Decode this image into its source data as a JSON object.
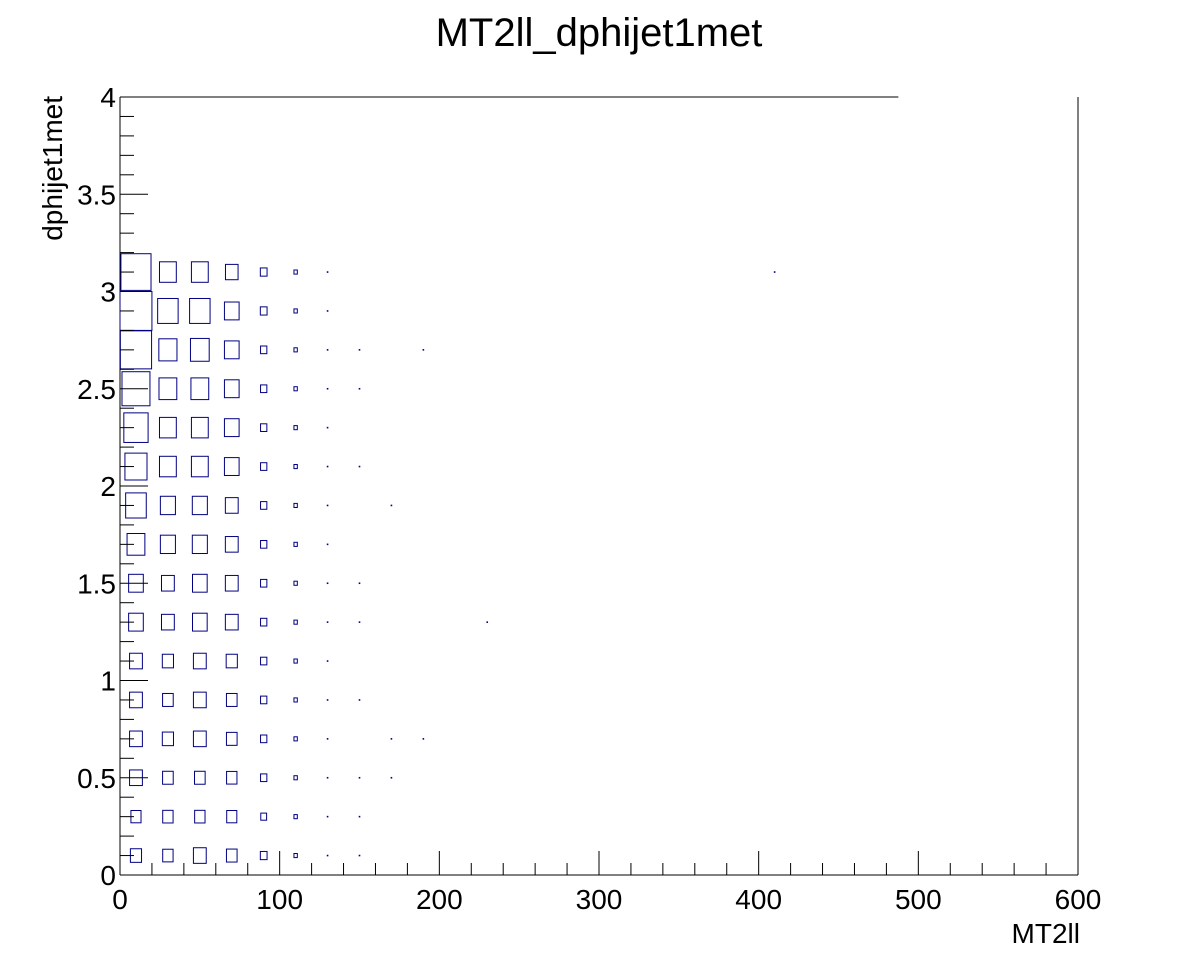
{
  "chart_data": {
    "type": "heatmap",
    "style": "box",
    "title": "MT2ll_dphijet1met",
    "xlabel": "MT2ll",
    "ylabel": "dphijet1met",
    "xlim": [
      0,
      600
    ],
    "ylim": [
      0,
      4
    ],
    "x_ticks": [
      "0",
      "100",
      "200",
      "300",
      "400",
      "500",
      "600"
    ],
    "y_ticks": [
      "0",
      "0.5",
      "1",
      "1.5",
      "2",
      "2.5",
      "3",
      "3.5",
      "4"
    ],
    "grid": false,
    "legend": "none",
    "box_color": "#000080",
    "bin_width_x": 20,
    "bin_width_y": 0.2,
    "max_value": 900,
    "x_centers": [
      10,
      30,
      50,
      70,
      90,
      110,
      130,
      150,
      170,
      190,
      230,
      410
    ],
    "rows": [
      {
        "y": 0.1,
        "values": [
          110,
          95,
          145,
          100,
          40,
          10,
          3,
          3
        ]
      },
      {
        "y": 0.3,
        "values": [
          90,
          95,
          95,
          90,
          30,
          10,
          3,
          3
        ]
      },
      {
        "y": 0.5,
        "values": [
          145,
          100,
          100,
          95,
          35,
          10,
          3,
          3,
          3
        ]
      },
      {
        "y": 0.7,
        "values": [
          145,
          110,
          145,
          100,
          35,
          10,
          3,
          0,
          3,
          3
        ]
      },
      {
        "y": 0.9,
        "values": [
          145,
          100,
          145,
          100,
          35,
          10,
          3,
          3
        ]
      },
      {
        "y": 1.1,
        "values": [
          145,
          110,
          145,
          110,
          35,
          10,
          3
        ]
      },
      {
        "y": 1.3,
        "values": [
          190,
          145,
          190,
          145,
          35,
          10,
          3,
          3,
          0,
          0,
          3
        ]
      },
      {
        "y": 1.5,
        "values": [
          190,
          145,
          190,
          145,
          35,
          10,
          3,
          3
        ]
      },
      {
        "y": 1.7,
        "values": [
          280,
          200,
          200,
          145,
          35,
          10,
          3
        ]
      },
      {
        "y": 1.9,
        "values": [
          375,
          200,
          200,
          145,
          35,
          10,
          3,
          0,
          3
        ]
      },
      {
        "y": 2.1,
        "values": [
          430,
          250,
          250,
          190,
          35,
          10,
          3,
          3
        ]
      },
      {
        "y": 2.3,
        "values": [
          520,
          250,
          250,
          190,
          35,
          10,
          3
        ]
      },
      {
        "y": 2.5,
        "values": [
          690,
          280,
          280,
          190,
          35,
          10,
          3,
          3
        ]
      },
      {
        "y": 2.7,
        "values": [
          860,
          290,
          310,
          190,
          35,
          10,
          3,
          3,
          0,
          3
        ]
      },
      {
        "y": 2.9,
        "values": [
          900,
          370,
          370,
          190,
          40,
          10,
          3
        ]
      },
      {
        "y": 3.1,
        "values": [
          800,
          250,
          250,
          140,
          40,
          10,
          3,
          0,
          0,
          0,
          0,
          3
        ]
      }
    ]
  }
}
